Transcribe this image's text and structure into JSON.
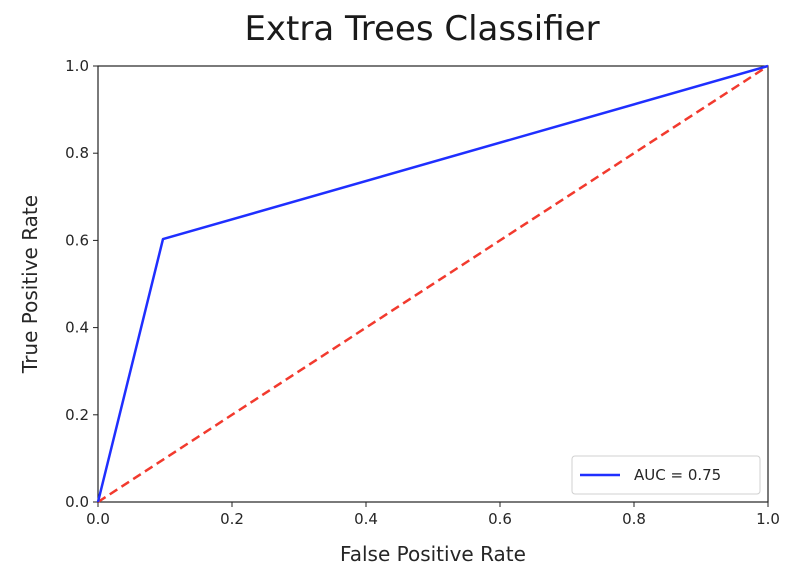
{
  "chart_data": {
    "type": "line",
    "title": "Extra Trees Classifier",
    "xlabel": "False Positive Rate",
    "ylabel": "True Positive Rate",
    "xlim": [
      0.0,
      1.0
    ],
    "ylim": [
      0.0,
      1.0
    ],
    "x_ticks": [
      "0.0",
      "0.2",
      "0.4",
      "0.6",
      "0.8",
      "1.0"
    ],
    "y_ticks": [
      "0.0",
      "0.2",
      "0.4",
      "0.6",
      "0.8",
      "1.0"
    ],
    "grid": false,
    "legend_position": "lower-right",
    "series": [
      {
        "name": "AUC = 0.75",
        "style": "solid",
        "color": "#1f2fff",
        "x": [
          0.0,
          0.097,
          1.0
        ],
        "y": [
          0.0,
          0.603,
          1.0
        ]
      },
      {
        "style": "dashed",
        "color": "#f23a2e",
        "x": [
          0.0,
          1.0
        ],
        "y": [
          0.0,
          1.0
        ]
      }
    ]
  }
}
